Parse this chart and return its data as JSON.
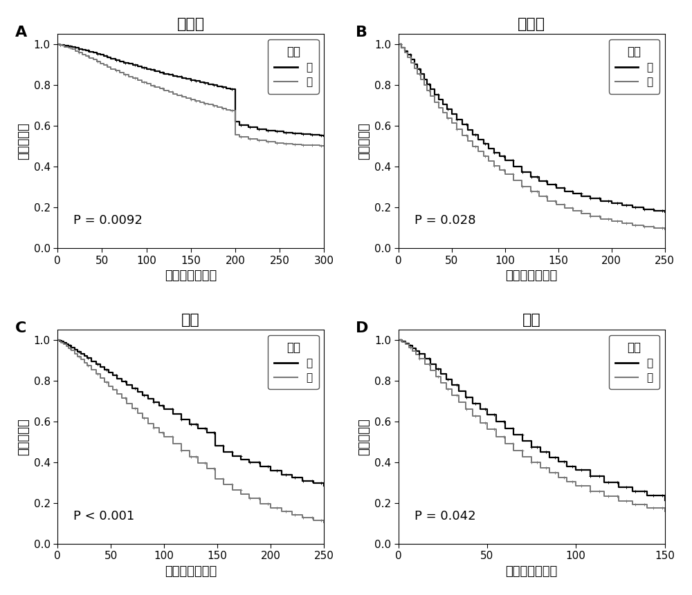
{
  "panels": [
    {
      "label": "A",
      "title": "乳腺癌",
      "pvalue": "P = 0.0092",
      "xlim": [
        0,
        300
      ],
      "xticks": [
        0,
        50,
        100,
        150,
        200,
        250,
        300
      ],
      "ylim": [
        0,
        1.05
      ],
      "yticks": [
        0,
        0.2,
        0.4,
        0.6,
        0.8,
        1.0
      ],
      "curve_low": {
        "times": [
          0,
          2,
          5,
          8,
          12,
          16,
          20,
          24,
          28,
          32,
          36,
          40,
          44,
          48,
          52,
          56,
          60,
          65,
          70,
          75,
          80,
          85,
          90,
          95,
          100,
          105,
          110,
          115,
          120,
          125,
          130,
          135,
          140,
          145,
          150,
          155,
          160,
          165,
          170,
          175,
          180,
          185,
          190,
          195,
          200,
          205,
          215,
          225,
          235,
          245,
          255,
          265,
          275,
          285,
          295,
          300
        ],
        "survival": [
          1.0,
          0.998,
          0.996,
          0.993,
          0.99,
          0.986,
          0.982,
          0.978,
          0.974,
          0.969,
          0.964,
          0.959,
          0.954,
          0.948,
          0.942,
          0.936,
          0.93,
          0.923,
          0.916,
          0.91,
          0.904,
          0.898,
          0.892,
          0.886,
          0.88,
          0.874,
          0.868,
          0.862,
          0.856,
          0.85,
          0.845,
          0.84,
          0.835,
          0.83,
          0.825,
          0.82,
          0.815,
          0.81,
          0.805,
          0.8,
          0.795,
          0.79,
          0.785,
          0.78,
          0.62,
          0.605,
          0.595,
          0.585,
          0.578,
          0.572,
          0.568,
          0.563,
          0.559,
          0.556,
          0.553,
          0.55
        ]
      },
      "curve_high": {
        "times": [
          0,
          2,
          5,
          8,
          12,
          16,
          20,
          24,
          28,
          32,
          36,
          40,
          44,
          48,
          52,
          56,
          60,
          65,
          70,
          75,
          80,
          85,
          90,
          95,
          100,
          105,
          110,
          115,
          120,
          125,
          130,
          135,
          140,
          145,
          150,
          155,
          160,
          165,
          170,
          175,
          180,
          185,
          190,
          195,
          200,
          205,
          215,
          225,
          235,
          245,
          255,
          265,
          275,
          285,
          295,
          300
        ],
        "survival": [
          1.0,
          0.997,
          0.993,
          0.988,
          0.982,
          0.975,
          0.967,
          0.959,
          0.951,
          0.943,
          0.934,
          0.925,
          0.916,
          0.907,
          0.898,
          0.889,
          0.88,
          0.87,
          0.86,
          0.851,
          0.842,
          0.833,
          0.824,
          0.815,
          0.806,
          0.798,
          0.79,
          0.782,
          0.774,
          0.766,
          0.758,
          0.751,
          0.744,
          0.737,
          0.73,
          0.723,
          0.716,
          0.71,
          0.704,
          0.698,
          0.692,
          0.686,
          0.68,
          0.674,
          0.555,
          0.545,
          0.536,
          0.528,
          0.522,
          0.517,
          0.513,
          0.51,
          0.507,
          0.505,
          0.503,
          0.501
        ]
      }
    },
    {
      "label": "B",
      "title": "卵巢癌",
      "pvalue": "P = 0.028",
      "xlim": [
        0,
        250
      ],
      "xticks": [
        0,
        50,
        100,
        150,
        200,
        250
      ],
      "ylim": [
        0,
        1.05
      ],
      "yticks": [
        0,
        0.2,
        0.4,
        0.6,
        0.8,
        1.0
      ],
      "curve_low": {
        "times": [
          0,
          3,
          6,
          9,
          12,
          15,
          18,
          21,
          24,
          27,
          30,
          34,
          38,
          42,
          46,
          50,
          55,
          60,
          65,
          70,
          75,
          80,
          85,
          90,
          95,
          100,
          108,
          116,
          124,
          132,
          140,
          148,
          156,
          164,
          172,
          180,
          190,
          200,
          210,
          220,
          230,
          240,
          250
        ],
        "survival": [
          1.0,
          0.985,
          0.968,
          0.948,
          0.926,
          0.902,
          0.878,
          0.853,
          0.828,
          0.803,
          0.779,
          0.754,
          0.73,
          0.706,
          0.682,
          0.659,
          0.632,
          0.606,
          0.581,
          0.557,
          0.533,
          0.511,
          0.489,
          0.469,
          0.45,
          0.432,
          0.402,
          0.375,
          0.351,
          0.33,
          0.311,
          0.295,
          0.28,
          0.267,
          0.255,
          0.244,
          0.231,
          0.22,
          0.21,
          0.2,
          0.192,
          0.185,
          0.178
        ]
      },
      "curve_high": {
        "times": [
          0,
          3,
          6,
          9,
          12,
          15,
          18,
          21,
          24,
          27,
          30,
          34,
          38,
          42,
          46,
          50,
          55,
          60,
          65,
          70,
          75,
          80,
          85,
          90,
          95,
          100,
          108,
          116,
          124,
          132,
          140,
          148,
          156,
          164,
          172,
          180,
          190,
          200,
          210,
          220,
          230,
          240,
          250
        ],
        "survival": [
          1.0,
          0.982,
          0.96,
          0.936,
          0.91,
          0.883,
          0.855,
          0.827,
          0.799,
          0.772,
          0.745,
          0.717,
          0.69,
          0.664,
          0.638,
          0.613,
          0.583,
          0.554,
          0.526,
          0.499,
          0.474,
          0.45,
          0.427,
          0.405,
          0.384,
          0.365,
          0.333,
          0.304,
          0.278,
          0.254,
          0.233,
          0.215,
          0.198,
          0.183,
          0.17,
          0.158,
          0.144,
          0.132,
          0.122,
          0.113,
          0.105,
          0.098,
          0.092
        ]
      }
    },
    {
      "label": "C",
      "title": "肺癌",
      "pvalue": "P < 0.001",
      "xlim": [
        0,
        250
      ],
      "xticks": [
        0,
        50,
        100,
        150,
        200,
        250
      ],
      "ylim": [
        0,
        1.05
      ],
      "yticks": [
        0,
        0.2,
        0.4,
        0.6,
        0.8,
        1.0
      ],
      "curve_low": {
        "times": [
          0,
          2,
          4,
          6,
          8,
          10,
          13,
          16,
          19,
          22,
          25,
          28,
          32,
          36,
          40,
          44,
          48,
          52,
          56,
          60,
          65,
          70,
          75,
          80,
          85,
          90,
          95,
          100,
          108,
          116,
          124,
          132,
          140,
          148,
          156,
          164,
          172,
          180,
          190,
          200,
          210,
          220,
          230,
          240,
          250
        ],
        "survival": [
          1.0,
          0.996,
          0.991,
          0.985,
          0.979,
          0.972,
          0.963,
          0.953,
          0.943,
          0.932,
          0.921,
          0.91,
          0.896,
          0.882,
          0.868,
          0.854,
          0.84,
          0.825,
          0.811,
          0.797,
          0.779,
          0.762,
          0.745,
          0.728,
          0.711,
          0.694,
          0.678,
          0.662,
          0.636,
          0.611,
          0.587,
          0.565,
          0.544,
          0.481,
          0.45,
          0.43,
          0.415,
          0.4,
          0.38,
          0.36,
          0.34,
          0.325,
          0.31,
          0.298,
          0.285
        ]
      },
      "curve_high": {
        "times": [
          0,
          2,
          4,
          6,
          8,
          10,
          13,
          16,
          19,
          22,
          25,
          28,
          32,
          36,
          40,
          44,
          48,
          52,
          56,
          60,
          65,
          70,
          75,
          80,
          85,
          90,
          95,
          100,
          108,
          116,
          124,
          132,
          140,
          148,
          156,
          164,
          172,
          180,
          190,
          200,
          210,
          220,
          230,
          240,
          250
        ],
        "survival": [
          1.0,
          0.994,
          0.987,
          0.979,
          0.97,
          0.96,
          0.947,
          0.933,
          0.919,
          0.904,
          0.889,
          0.873,
          0.854,
          0.834,
          0.814,
          0.794,
          0.774,
          0.754,
          0.734,
          0.714,
          0.689,
          0.664,
          0.639,
          0.615,
          0.591,
          0.568,
          0.546,
          0.524,
          0.49,
          0.457,
          0.426,
          0.397,
          0.37,
          0.32,
          0.29,
          0.265,
          0.243,
          0.222,
          0.198,
          0.176,
          0.158,
          0.142,
          0.128,
          0.116,
          0.105
        ]
      }
    },
    {
      "label": "D",
      "title": "胃癌",
      "pvalue": "P = 0.042",
      "xlim": [
        0,
        150
      ],
      "xticks": [
        0,
        50,
        100,
        150
      ],
      "ylim": [
        0,
        1.05
      ],
      "yticks": [
        0,
        0.2,
        0.4,
        0.6,
        0.8,
        1.0
      ],
      "curve_low": {
        "times": [
          0,
          2,
          4,
          6,
          8,
          10,
          12,
          15,
          18,
          21,
          24,
          27,
          30,
          34,
          38,
          42,
          46,
          50,
          55,
          60,
          65,
          70,
          75,
          80,
          85,
          90,
          95,
          100,
          108,
          116,
          124,
          132,
          140,
          150
        ],
        "survival": [
          1.0,
          0.993,
          0.984,
          0.973,
          0.96,
          0.946,
          0.93,
          0.907,
          0.882,
          0.857,
          0.832,
          0.806,
          0.78,
          0.749,
          0.719,
          0.689,
          0.66,
          0.632,
          0.598,
          0.565,
          0.534,
          0.504,
          0.476,
          0.45,
          0.425,
          0.402,
          0.381,
          0.361,
          0.331,
          0.303,
          0.278,
          0.256,
          0.236,
          0.214
        ]
      },
      "curve_high": {
        "times": [
          0,
          2,
          4,
          6,
          8,
          10,
          12,
          15,
          18,
          21,
          24,
          27,
          30,
          34,
          38,
          42,
          46,
          50,
          55,
          60,
          65,
          70,
          75,
          80,
          85,
          90,
          95,
          100,
          108,
          116,
          124,
          132,
          140,
          150
        ],
        "survival": [
          1.0,
          0.99,
          0.978,
          0.963,
          0.946,
          0.928,
          0.908,
          0.88,
          0.85,
          0.82,
          0.789,
          0.759,
          0.729,
          0.694,
          0.659,
          0.626,
          0.594,
          0.563,
          0.526,
          0.491,
          0.458,
          0.428,
          0.399,
          0.373,
          0.348,
          0.326,
          0.305,
          0.286,
          0.258,
          0.233,
          0.211,
          0.192,
          0.175,
          0.158
        ]
      }
    }
  ],
  "color_low": "#000000",
  "color_high": "#777777",
  "xlabel": "生存时间（月）",
  "ylabel": "总体生存率",
  "legend_title": "表达",
  "legend_low": "低",
  "legend_high": "高",
  "title_fontsize": 16,
  "label_fontsize": 13,
  "tick_fontsize": 11,
  "pvalue_fontsize": 13,
  "legend_fontsize": 11
}
